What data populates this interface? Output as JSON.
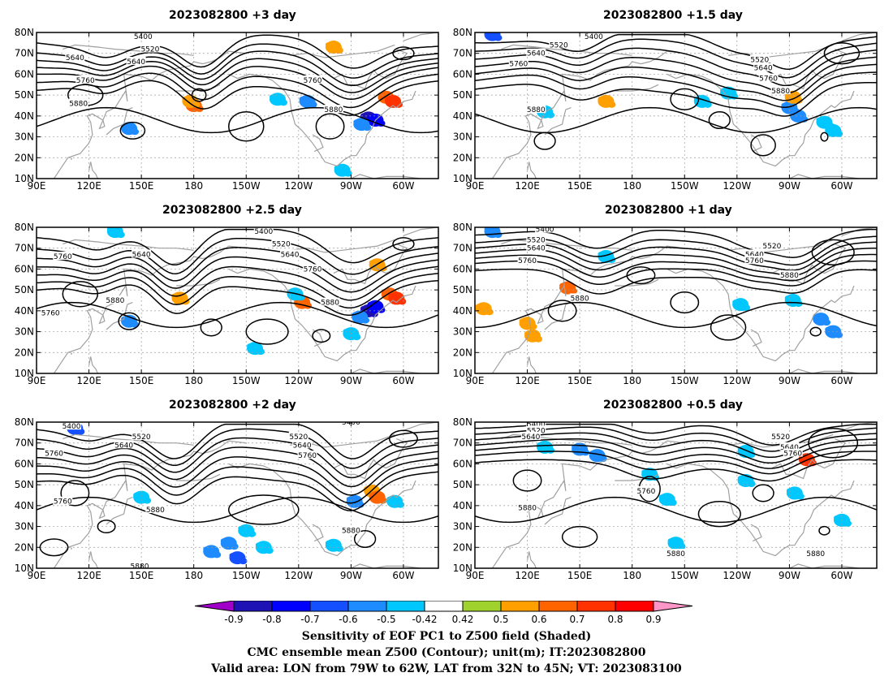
{
  "figure": {
    "caption": [
      "Sensitivity of EOF PC1 to Z500 field (Shaded)",
      "CMC ensemble mean Z500 (Contour); unit(m); IT:2023082800",
      "Valid area: LON from 79W to 62W, LAT from 32N to 45N; VT: 2023083100"
    ]
  },
  "panels": [
    {
      "title": "2023082800  +3 day",
      "contour_labels": [
        {
          "text": "5400",
          "lon": 151,
          "lat": 78
        },
        {
          "text": "5520",
          "lon": 155,
          "lat": 72
        },
        {
          "text": "5640",
          "lon": 147,
          "lat": 66
        },
        {
          "text": "5640",
          "lon": 112,
          "lat": 68
        },
        {
          "text": "5760",
          "lon": 118,
          "lat": 57
        },
        {
          "text": "5760",
          "lon": -112,
          "lat": 57
        },
        {
          "text": "5880",
          "lon": 114,
          "lat": 46
        },
        {
          "text": "5880",
          "lon": -100,
          "lat": 43
        }
      ],
      "shading": [
        {
          "lon": -80,
          "lat": 39,
          "v": -0.85
        },
        {
          "lon": -76,
          "lat": 38,
          "v": -0.8
        },
        {
          "lon": -84,
          "lat": 36,
          "v": -0.6
        },
        {
          "lon": -70,
          "lat": 49,
          "v": 0.65
        },
        {
          "lon": -66,
          "lat": 47,
          "v": 0.7
        },
        {
          "lon": -115,
          "lat": 47,
          "v": -0.55
        },
        {
          "lon": -132,
          "lat": 48,
          "v": -0.5
        },
        {
          "lon": 180,
          "lat": 45,
          "v": 0.6
        },
        {
          "lon": 143,
          "lat": 34,
          "v": -0.6
        },
        {
          "lon": 178,
          "lat": 47,
          "v": 0.5
        },
        {
          "lon": -100,
          "lat": 73,
          "v": 0.5
        },
        {
          "lon": -95,
          "lat": 14,
          "v": -0.5
        }
      ]
    },
    {
      "title": "2023082800  +1.5 day",
      "contour_labels": [
        {
          "text": "5400",
          "lon": 158,
          "lat": 78
        },
        {
          "text": "5520",
          "lon": 138,
          "lat": 74
        },
        {
          "text": "5640",
          "lon": 125,
          "lat": 70
        },
        {
          "text": "5760",
          "lon": 115,
          "lat": 65
        },
        {
          "text": "5520",
          "lon": -107,
          "lat": 67
        },
        {
          "text": "5640",
          "lon": -105,
          "lat": 63
        },
        {
          "text": "5760",
          "lon": -102,
          "lat": 58
        },
        {
          "text": "5880",
          "lon": -95,
          "lat": 52
        },
        {
          "text": "5880",
          "lon": 125,
          "lat": 43
        }
      ],
      "shading": [
        {
          "lon": -90,
          "lat": 44,
          "v": -0.6
        },
        {
          "lon": -85,
          "lat": 40,
          "v": -0.55
        },
        {
          "lon": -125,
          "lat": 51,
          "v": -0.5
        },
        {
          "lon": -140,
          "lat": 47,
          "v": -0.5
        },
        {
          "lon": 130,
          "lat": 42,
          "v": -0.5
        },
        {
          "lon": -65,
          "lat": 33,
          "v": -0.5
        },
        {
          "lon": -70,
          "lat": 37,
          "v": -0.5
        },
        {
          "lon": 100,
          "lat": 79,
          "v": -0.7
        },
        {
          "lon": -88,
          "lat": 49,
          "v": 0.5
        },
        {
          "lon": 165,
          "lat": 47,
          "v": 0.5
        }
      ]
    },
    {
      "title": "2023082800  +2.5 day",
      "contour_labels": [
        {
          "text": "5400",
          "lon": -140,
          "lat": 78
        },
        {
          "text": "5520",
          "lon": -130,
          "lat": 72
        },
        {
          "text": "5640",
          "lon": 150,
          "lat": 67
        },
        {
          "text": "5640",
          "lon": -125,
          "lat": 67
        },
        {
          "text": "5760",
          "lon": 105,
          "lat": 66
        },
        {
          "text": "5760",
          "lon": -112,
          "lat": 60
        },
        {
          "text": "5880",
          "lon": 135,
          "lat": 45
        },
        {
          "text": "5880",
          "lon": -102,
          "lat": 44
        },
        {
          "text": "5760",
          "lon": 98,
          "lat": 39
        }
      ],
      "shading": [
        {
          "lon": -80,
          "lat": 40,
          "v": -0.85
        },
        {
          "lon": -76,
          "lat": 42,
          "v": -0.8
        },
        {
          "lon": -85,
          "lat": 37,
          "v": -0.6
        },
        {
          "lon": -68,
          "lat": 48,
          "v": 0.65
        },
        {
          "lon": -64,
          "lat": 46,
          "v": 0.7
        },
        {
          "lon": -118,
          "lat": 44,
          "v": 0.65
        },
        {
          "lon": -122,
          "lat": 48,
          "v": -0.5
        },
        {
          "lon": 172,
          "lat": 46,
          "v": 0.5
        },
        {
          "lon": 143,
          "lat": 35,
          "v": -0.55
        },
        {
          "lon": -145,
          "lat": 22,
          "v": -0.5
        },
        {
          "lon": -90,
          "lat": 29,
          "v": -0.5
        },
        {
          "lon": -75,
          "lat": 62,
          "v": 0.5
        },
        {
          "lon": 135,
          "lat": 78,
          "v": -0.5
        }
      ]
    },
    {
      "title": "2023082800  +1 day",
      "contour_labels": [
        {
          "text": "5400",
          "lon": 130,
          "lat": 79
        },
        {
          "text": "5520",
          "lon": 125,
          "lat": 74
        },
        {
          "text": "5640",
          "lon": 125,
          "lat": 70
        },
        {
          "text": "5760",
          "lon": 120,
          "lat": 64
        },
        {
          "text": "5520",
          "lon": -100,
          "lat": 71
        },
        {
          "text": "5640",
          "lon": -110,
          "lat": 67
        },
        {
          "text": "5760",
          "lon": -110,
          "lat": 64
        },
        {
          "text": "5880",
          "lon": -90,
          "lat": 57
        },
        {
          "text": "5880",
          "lon": 150,
          "lat": 46
        }
      ],
      "shading": [
        {
          "lon": -72,
          "lat": 36,
          "v": -0.6
        },
        {
          "lon": -65,
          "lat": 30,
          "v": -0.55
        },
        {
          "lon": -88,
          "lat": 45,
          "v": -0.5
        },
        {
          "lon": 143,
          "lat": 51,
          "v": 0.6
        },
        {
          "lon": 123,
          "lat": 28,
          "v": 0.5
        },
        {
          "lon": 120,
          "lat": 34,
          "v": 0.5
        },
        {
          "lon": 95,
          "lat": 41,
          "v": 0.5
        },
        {
          "lon": 100,
          "lat": 78,
          "v": -0.55
        },
        {
          "lon": 165,
          "lat": 66,
          "v": -0.5
        },
        {
          "lon": -118,
          "lat": 43,
          "v": -0.5
        }
      ]
    },
    {
      "title": "2023082800  +2 day",
      "contour_labels": [
        {
          "text": "5400",
          "lon": 110,
          "lat": 78
        },
        {
          "text": "5520",
          "lon": 150,
          "lat": 73
        },
        {
          "text": "5520",
          "lon": -120,
          "lat": 73
        },
        {
          "text": "5640",
          "lon": 140,
          "lat": 69
        },
        {
          "text": "5640",
          "lon": -118,
          "lat": 69
        },
        {
          "text": "5760",
          "lon": 100,
          "lat": 65
        },
        {
          "text": "5760",
          "lon": -115,
          "lat": 64
        },
        {
          "text": "5760",
          "lon": 105,
          "lat": 42
        },
        {
          "text": "5880",
          "lon": 158,
          "lat": 38
        },
        {
          "text": "5880",
          "lon": -90,
          "lat": 28
        },
        {
          "text": "5880",
          "lon": 149,
          "lat": 11
        },
        {
          "text": "5400",
          "lon": -90,
          "lat": 80
        }
      ],
      "shading": [
        {
          "lon": -160,
          "lat": 22,
          "v": -0.6
        },
        {
          "lon": -155,
          "lat": 15,
          "v": -0.65
        },
        {
          "lon": -170,
          "lat": 18,
          "v": -0.55
        },
        {
          "lon": -150,
          "lat": 28,
          "v": -0.5
        },
        {
          "lon": -140,
          "lat": 20,
          "v": -0.5
        },
        {
          "lon": -88,
          "lat": 42,
          "v": -0.55
        },
        {
          "lon": -78,
          "lat": 47,
          "v": 0.5
        },
        {
          "lon": -75,
          "lat": 44,
          "v": 0.6
        },
        {
          "lon": 150,
          "lat": 44,
          "v": -0.5
        },
        {
          "lon": 112,
          "lat": 77,
          "v": -0.65
        },
        {
          "lon": -100,
          "lat": 21,
          "v": -0.5
        },
        {
          "lon": -65,
          "lat": 42,
          "v": -0.5
        }
      ]
    },
    {
      "title": "2023082800  +0.5 day",
      "contour_labels": [
        {
          "text": "5400",
          "lon": 125,
          "lat": 79
        },
        {
          "text": "5520",
          "lon": 125,
          "lat": 76
        },
        {
          "text": "5640",
          "lon": 122,
          "lat": 73
        },
        {
          "text": "5520",
          "lon": -95,
          "lat": 73
        },
        {
          "text": "5640",
          "lon": -90,
          "lat": 68
        },
        {
          "text": "5760",
          "lon": -88,
          "lat": 65
        },
        {
          "text": "5760",
          "lon": -172,
          "lat": 47
        },
        {
          "text": "5880",
          "lon": 120,
          "lat": 39
        },
        {
          "text": "5880",
          "lon": -155,
          "lat": 17
        },
        {
          "text": "5880",
          "lon": -75,
          "lat": 17
        }
      ],
      "shading": [
        {
          "lon": 150,
          "lat": 67,
          "v": -0.6
        },
        {
          "lon": 160,
          "lat": 64,
          "v": -0.55
        },
        {
          "lon": 130,
          "lat": 68,
          "v": -0.5
        },
        {
          "lon": -80,
          "lat": 62,
          "v": 0.7
        },
        {
          "lon": -115,
          "lat": 66,
          "v": -0.5
        },
        {
          "lon": -160,
          "lat": 43,
          "v": -0.5
        },
        {
          "lon": -115,
          "lat": 52,
          "v": -0.5
        },
        {
          "lon": -170,
          "lat": 55,
          "v": -0.5
        },
        {
          "lon": -155,
          "lat": 22,
          "v": -0.5
        },
        {
          "lon": -87,
          "lat": 46,
          "v": -0.5
        },
        {
          "lon": -60,
          "lat": 33,
          "v": -0.5
        }
      ]
    }
  ],
  "axes": {
    "lon_ticks": [
      "90E",
      "120E",
      "150E",
      "180",
      "150W",
      "120W",
      "90W",
      "60W"
    ],
    "lat_ticks": [
      "80N",
      "70N",
      "60N",
      "50N",
      "40N",
      "30N",
      "20N",
      "10N"
    ],
    "lon_range": [
      90,
      320
    ],
    "lat_range": [
      10,
      80
    ]
  },
  "colorbar": {
    "ticks": [
      "-0.9",
      "-0.8",
      "-0.7",
      "-0.6",
      "-0.5",
      "-0.42",
      "0.42",
      "0.5",
      "0.6",
      "0.7",
      "0.8",
      "0.9"
    ],
    "colors": [
      "#a000c8",
      "#1e12b4",
      "#0000ff",
      "#1450ff",
      "#1e8cff",
      "#00c8ff",
      "#ffffff",
      "#a0d22d",
      "#ffa000",
      "#ff6400",
      "#ff3200",
      "#ff0000",
      "#ff96c8"
    ],
    "contour_color": "#000000",
    "coast_color": "#a0a0a0"
  }
}
